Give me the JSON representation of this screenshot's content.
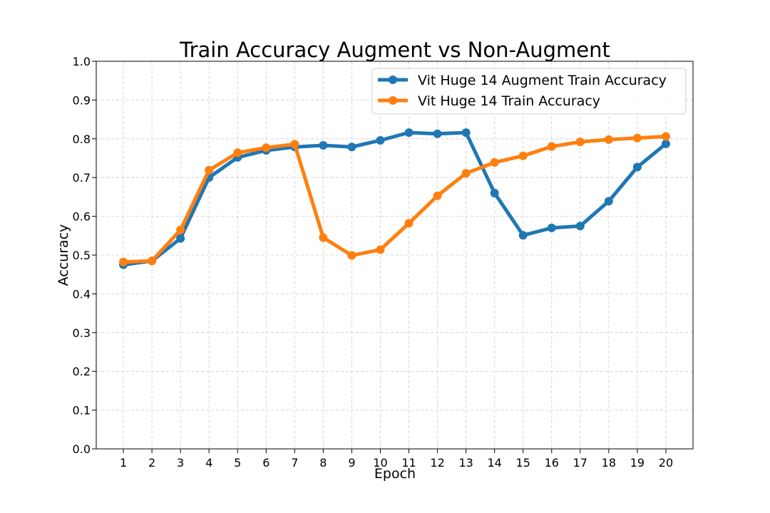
{
  "chart_data": {
    "type": "line",
    "title": "Train Accuracy Augment vs Non-Augment",
    "xlabel": "Epoch",
    "ylabel": "Accuracy",
    "x": [
      1,
      2,
      3,
      4,
      5,
      6,
      7,
      8,
      9,
      10,
      11,
      12,
      13,
      14,
      15,
      16,
      17,
      18,
      19,
      20
    ],
    "xlim": [
      0.05,
      20.95
    ],
    "ylim": [
      0.0,
      1.0
    ],
    "yticks": [
      "0.0",
      "0.1",
      "0.2",
      "0.3",
      "0.4",
      "0.5",
      "0.6",
      "0.7",
      "0.8",
      "0.9",
      "1.0"
    ],
    "xticks": [
      "1",
      "2",
      "3",
      "4",
      "5",
      "6",
      "7",
      "8",
      "9",
      "10",
      "11",
      "12",
      "13",
      "14",
      "15",
      "16",
      "17",
      "18",
      "19",
      "20"
    ],
    "grid": true,
    "legend_position": "top-right",
    "series": [
      {
        "name": "Vit Huge 14 Augment Train Accuracy",
        "color": "#1f77b4",
        "values": [
          0.475,
          0.485,
          0.543,
          0.7,
          0.752,
          0.77,
          0.779,
          0.783,
          0.779,
          0.796,
          0.816,
          0.813,
          0.816,
          0.66,
          0.551,
          0.57,
          0.575,
          0.639,
          0.727,
          0.787
        ]
      },
      {
        "name": "Vit Huge 14 Train Accuracy",
        "color": "#ff7f0e",
        "values": [
          0.482,
          0.485,
          0.565,
          0.719,
          0.764,
          0.777,
          0.786,
          0.545,
          0.499,
          0.514,
          0.582,
          0.653,
          0.711,
          0.739,
          0.756,
          0.78,
          0.792,
          0.798,
          0.802,
          0.806
        ]
      }
    ]
  }
}
